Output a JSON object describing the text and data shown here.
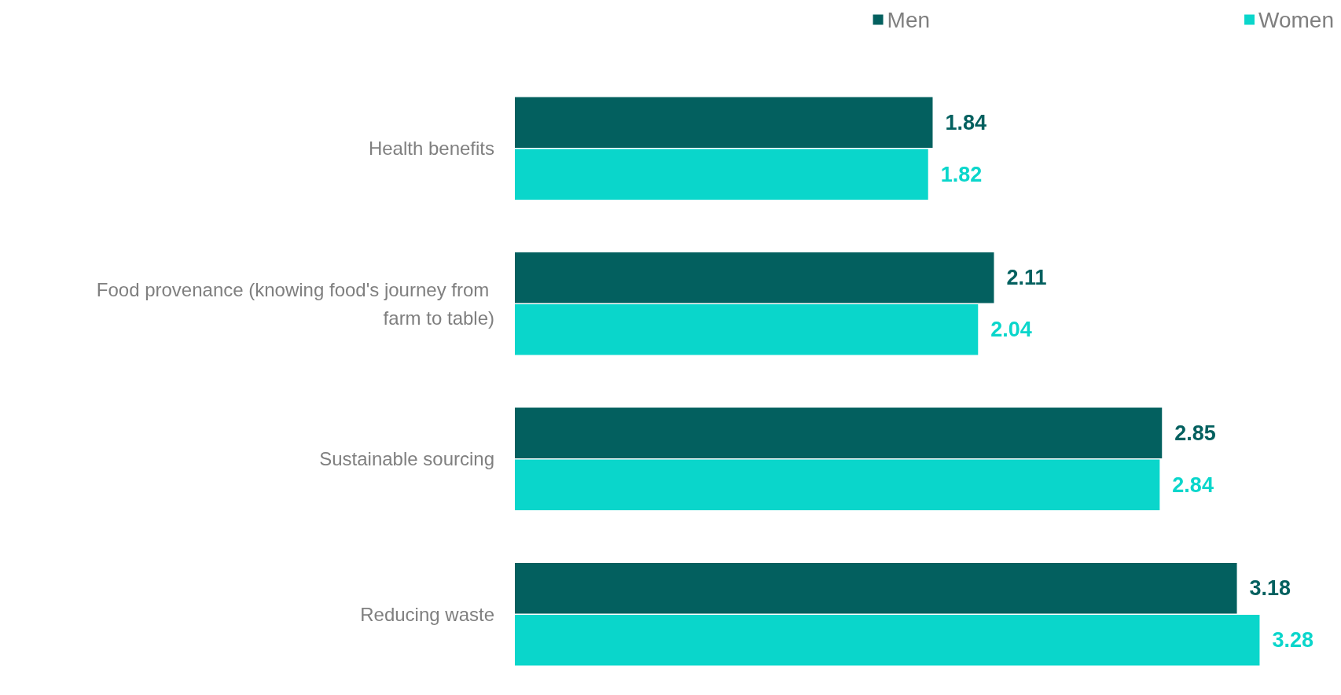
{
  "chart_data": {
    "type": "bar",
    "orientation": "horizontal",
    "categories": [
      "Health benefits",
      "Food provenance (knowing food's journey from farm to table)",
      "Sustainable sourcing",
      "Reducing waste"
    ],
    "series": [
      {
        "name": "Men",
        "color": "#03605f",
        "values": [
          1.84,
          2.11,
          2.85,
          3.18
        ]
      },
      {
        "name": "Women",
        "color": "#0ad6cb",
        "values": [
          1.82,
          2.04,
          2.84,
          3.28
        ]
      }
    ],
    "tick_labels": "y",
    "data_labels": true,
    "legend": "top right"
  }
}
